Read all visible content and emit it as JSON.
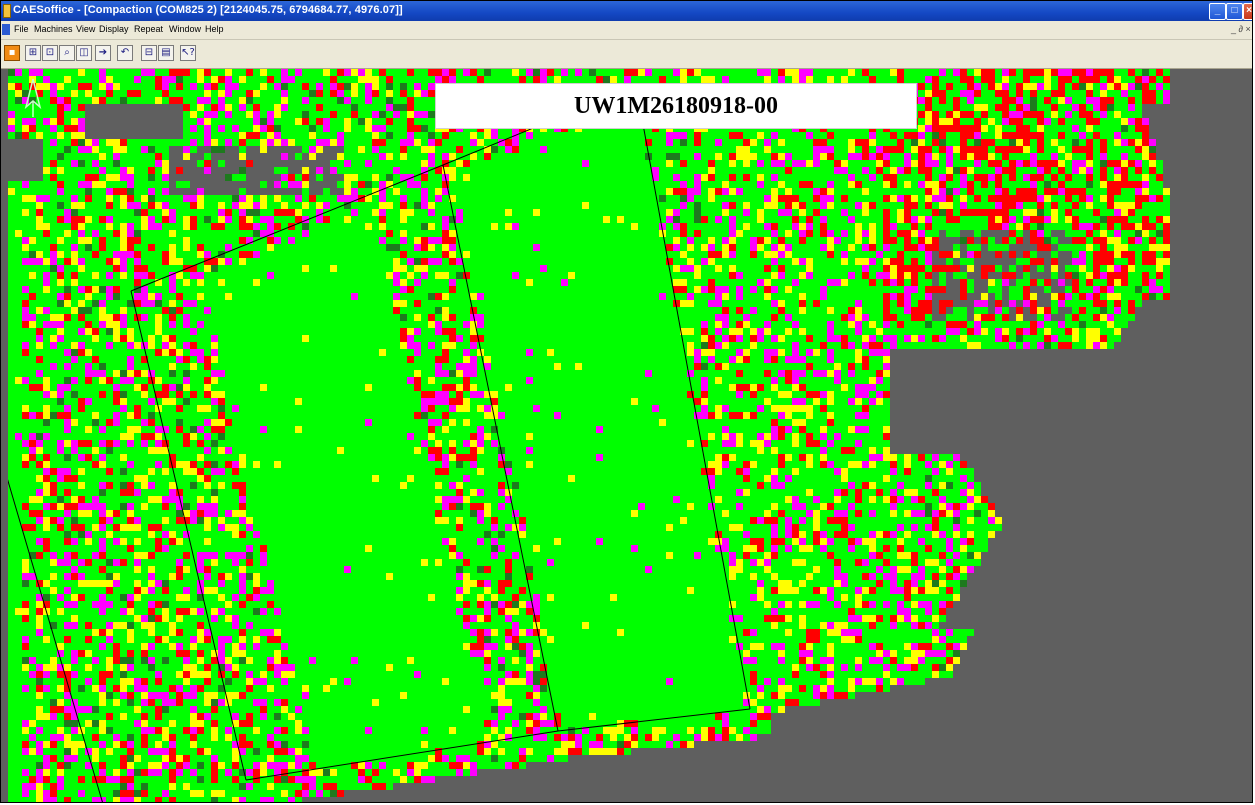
{
  "window": {
    "title": "CAESoffice - [Compaction  (COM825 2)   [2124045.75, 6794684.77, 4976.07]]",
    "controls": {
      "minimize": "_",
      "maximize": "□",
      "close": "×"
    }
  },
  "menu": {
    "items": [
      "File",
      "Machines",
      "View",
      "Display",
      "Repeat",
      "Window",
      "Help"
    ],
    "mdi_controls": "_ ∂ ×"
  },
  "toolbar": {
    "buttons": [
      "compaction-icon",
      "zoom-box-icon",
      "zoom-window-icon",
      "zoom-in-icon",
      "zoom-extent-icon",
      "pan-icon",
      "repeat-icon",
      "grid-icon",
      "layers-icon",
      "help-pointer-icon"
    ]
  },
  "overlay_label": {
    "text": "UW1M26180918-00"
  },
  "map": {
    "background": "#5f5f5f",
    "colors": {
      "pass": "#00ff00",
      "partial": "#ffff00",
      "marginal": "#ff00ff",
      "fail": "#ff0000",
      "dark_green": "#1e7a1e"
    },
    "north_arrow": "north-arrow-icon"
  }
}
